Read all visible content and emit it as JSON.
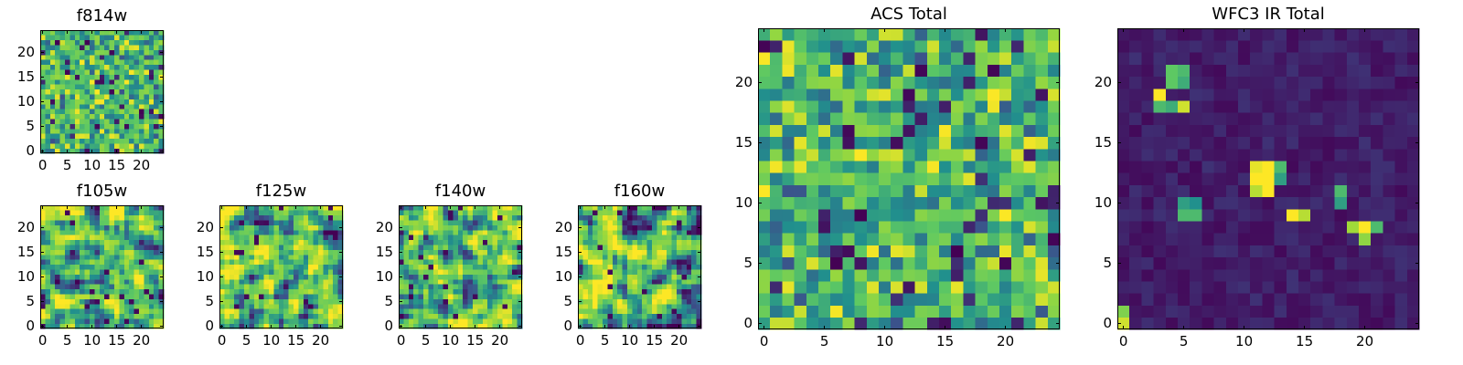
{
  "palette": [
    "#440154",
    "#3b528b",
    "#21908d",
    "#5dc863",
    "#a0da39",
    "#fde725"
  ],
  "chart_data": [
    {
      "type": "heatmap",
      "id": "f814w",
      "title": "f814w",
      "size": 25,
      "xticks": [
        0,
        5,
        10,
        15,
        20
      ],
      "yticks": [
        0,
        5,
        10,
        15,
        20
      ],
      "xlim": [
        0,
        24
      ],
      "ylim": [
        0,
        24
      ],
      "description": "noise field, mostly green/yellow",
      "seed": 11,
      "style": "noise"
    },
    {
      "type": "heatmap",
      "id": "f105w",
      "title": "f105w",
      "size": 25,
      "xticks": [
        0,
        5,
        10,
        15,
        20
      ],
      "yticks": [
        0,
        5,
        10,
        15,
        20
      ],
      "xlim": [
        0,
        24
      ],
      "ylim": [
        0,
        24
      ],
      "seed": 23,
      "style": "smooth"
    },
    {
      "type": "heatmap",
      "id": "f125w",
      "title": "f125w",
      "size": 25,
      "xticks": [
        0,
        5,
        10,
        15,
        20
      ],
      "yticks": [
        0,
        5,
        10,
        15,
        20
      ],
      "xlim": [
        0,
        24
      ],
      "ylim": [
        0,
        24
      ],
      "seed": 37,
      "style": "smooth"
    },
    {
      "type": "heatmap",
      "id": "f140w",
      "title": "f140w",
      "size": 25,
      "xticks": [
        0,
        5,
        10,
        15,
        20
      ],
      "yticks": [
        0,
        5,
        10,
        15,
        20
      ],
      "xlim": [
        0,
        24
      ],
      "ylim": [
        0,
        24
      ],
      "seed": 41,
      "style": "smooth"
    },
    {
      "type": "heatmap",
      "id": "f160w",
      "title": "f160w",
      "size": 25,
      "xticks": [
        0,
        5,
        10,
        15,
        20
      ],
      "yticks": [
        0,
        5,
        10,
        15,
        20
      ],
      "xlim": [
        0,
        24
      ],
      "ylim": [
        0,
        24
      ],
      "seed": 53,
      "style": "smooth"
    },
    {
      "type": "heatmap",
      "id": "acs-total",
      "title": "ACS Total",
      "size": 25,
      "xticks": [
        0,
        5,
        10,
        15,
        20
      ],
      "yticks": [
        0,
        5,
        10,
        15,
        20
      ],
      "xlim": [
        0,
        24
      ],
      "ylim": [
        0,
        24
      ],
      "seed": 67,
      "style": "noise"
    },
    {
      "type": "heatmap",
      "id": "wfc3-ir-total",
      "title": "WFC3 IR Total",
      "size": 25,
      "xticks": [
        0,
        5,
        10,
        15,
        20
      ],
      "yticks": [
        0,
        5,
        10,
        15,
        20
      ],
      "xlim": [
        0,
        24
      ],
      "ylim": [
        0,
        24
      ],
      "seed": 79,
      "style": "sources",
      "sources": [
        {
          "x": 3,
          "y": 19,
          "value": 1.0
        },
        {
          "x": 4,
          "y": 20,
          "value": 0.6
        },
        {
          "x": 5,
          "y": 20,
          "value": 0.5
        },
        {
          "x": 5,
          "y": 18,
          "value": 0.9
        },
        {
          "x": 4,
          "y": 18,
          "value": 0.5
        },
        {
          "x": 3,
          "y": 18,
          "value": 0.55
        },
        {
          "x": 5,
          "y": 21,
          "value": 0.55
        },
        {
          "x": 4,
          "y": 21,
          "value": 0.6
        },
        {
          "x": 11,
          "y": 13,
          "value": 0.95
        },
        {
          "x": 12,
          "y": 13,
          "value": 1.0
        },
        {
          "x": 11,
          "y": 12,
          "value": 1.0
        },
        {
          "x": 12,
          "y": 12,
          "value": 1.0
        },
        {
          "x": 12,
          "y": 11,
          "value": 1.0
        },
        {
          "x": 11,
          "y": 11,
          "value": 0.85
        },
        {
          "x": 13,
          "y": 13,
          "value": 0.55
        },
        {
          "x": 13,
          "y": 12,
          "value": 0.45
        },
        {
          "x": 5,
          "y": 10,
          "value": 0.45
        },
        {
          "x": 6,
          "y": 10,
          "value": 0.4
        },
        {
          "x": 5,
          "y": 9,
          "value": 0.55
        },
        {
          "x": 6,
          "y": 9,
          "value": 0.55
        },
        {
          "x": 14,
          "y": 9,
          "value": 1.0
        },
        {
          "x": 15,
          "y": 9,
          "value": 0.85
        },
        {
          "x": 18,
          "y": 11,
          "value": 0.55
        },
        {
          "x": 18,
          "y": 10,
          "value": 0.45
        },
        {
          "x": 19,
          "y": 8,
          "value": 0.8
        },
        {
          "x": 20,
          "y": 8,
          "value": 1.0
        },
        {
          "x": 21,
          "y": 8,
          "value": 0.55
        },
        {
          "x": 20,
          "y": 7,
          "value": 0.75
        },
        {
          "x": 0,
          "y": 1,
          "value": 0.7
        },
        {
          "x": 0,
          "y": 0,
          "value": 0.9
        }
      ]
    }
  ]
}
